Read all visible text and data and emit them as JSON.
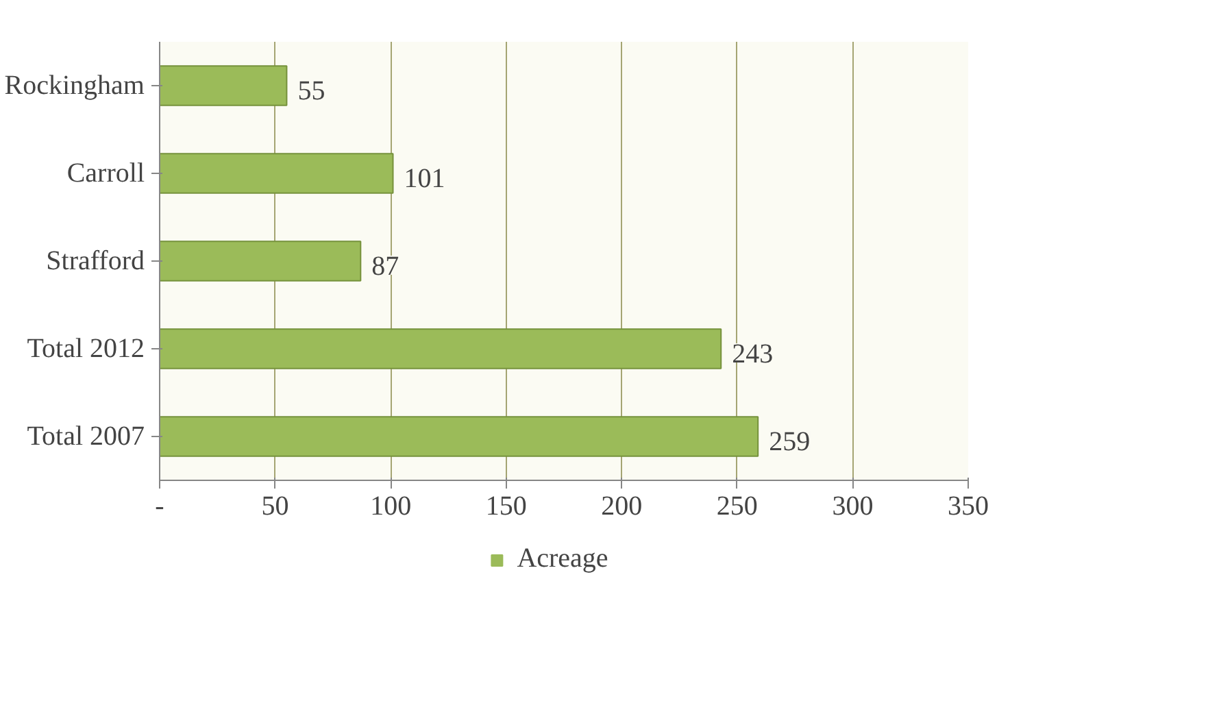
{
  "chart_data": {
    "type": "bar",
    "orientation": "horizontal",
    "categories": [
      "Rockingham",
      "Carroll",
      "Strafford",
      "Total 2012",
      "Total 2007"
    ],
    "series": [
      {
        "name": "Acreage",
        "color": "#9bbb59",
        "values": [
          55,
          101,
          87,
          243,
          259
        ]
      }
    ],
    "xlim": [
      0,
      350
    ],
    "xticks": [
      {
        "value": 0,
        "label": "-"
      },
      50,
      100,
      150,
      200,
      250,
      300,
      350
    ],
    "grid": "x",
    "legend": "bottom",
    "data_labels": true
  }
}
